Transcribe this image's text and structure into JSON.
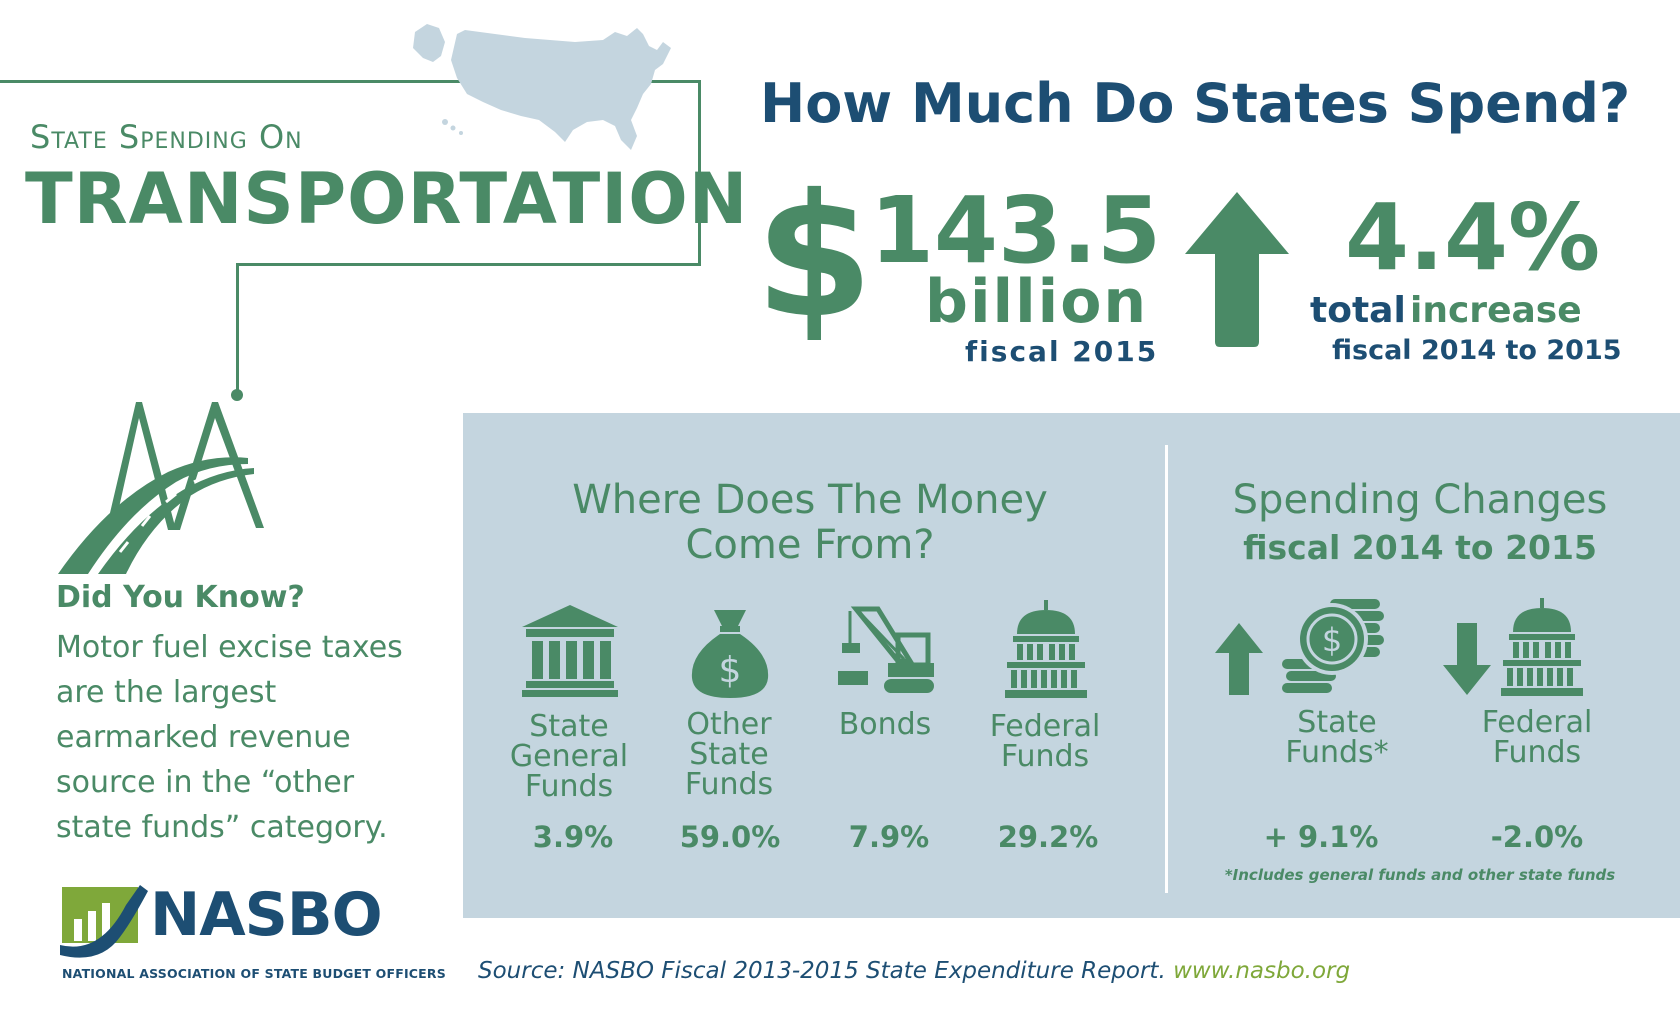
{
  "header": {
    "subtitle": "State Spending On",
    "title": "TRANSPORTATION",
    "headline": "How Much Do States Spend?"
  },
  "stats": {
    "currency_symbol": "$",
    "amount": "143.5",
    "amount_unit": "billion",
    "amount_period": "fiscal 2015",
    "increase": "4.4%",
    "increase_label_a": "total",
    "increase_label_b": "increase",
    "increase_period": "fiscal 2014 to 2015"
  },
  "sources": {
    "title_line1": "Where Does The Money",
    "title_line2": "Come From?",
    "items": [
      {
        "label_lines": [
          "State",
          "General",
          "Funds"
        ],
        "value": "3.9%",
        "icon": "state-building-icon"
      },
      {
        "label_lines": [
          "Other",
          "State",
          "Funds"
        ],
        "value": "59.0%",
        "icon": "money-bag-icon"
      },
      {
        "label_lines": [
          "Bonds"
        ],
        "value": "7.9%",
        "icon": "crane-icon"
      },
      {
        "label_lines": [
          "Federal",
          "Funds"
        ],
        "value": "29.2%",
        "icon": "capitol-icon"
      }
    ]
  },
  "changes": {
    "title": "Spending Changes",
    "subtitle": "fiscal 2014 to 2015",
    "items": [
      {
        "label_lines": [
          "State",
          "Funds*"
        ],
        "value": "+ 9.1%",
        "direction": "up"
      },
      {
        "label_lines": [
          "Federal",
          "Funds"
        ],
        "value": "-2.0%",
        "direction": "down"
      }
    ],
    "footnote": "*Includes general funds and other state funds"
  },
  "did_you_know": {
    "title": "Did You Know?",
    "body_lines": [
      "Motor fuel excise taxes",
      "are the largest",
      "earmarked revenue",
      "source in the “other",
      "state funds” category."
    ]
  },
  "logo": {
    "name": "NASBO",
    "full_name": "NATIONAL ASSOCIATION OF STATE BUDGET OFFICERS"
  },
  "footer": {
    "source": "Source: NASBO Fiscal 2013-2015 State Expenditure Report.",
    "url": "www.nasbo.org"
  },
  "colors": {
    "green": "#4a8a66",
    "navy": "#1d4e73",
    "panel": "#c4d5df",
    "map": "#c4d5df",
    "lime": "#7fa83a"
  }
}
